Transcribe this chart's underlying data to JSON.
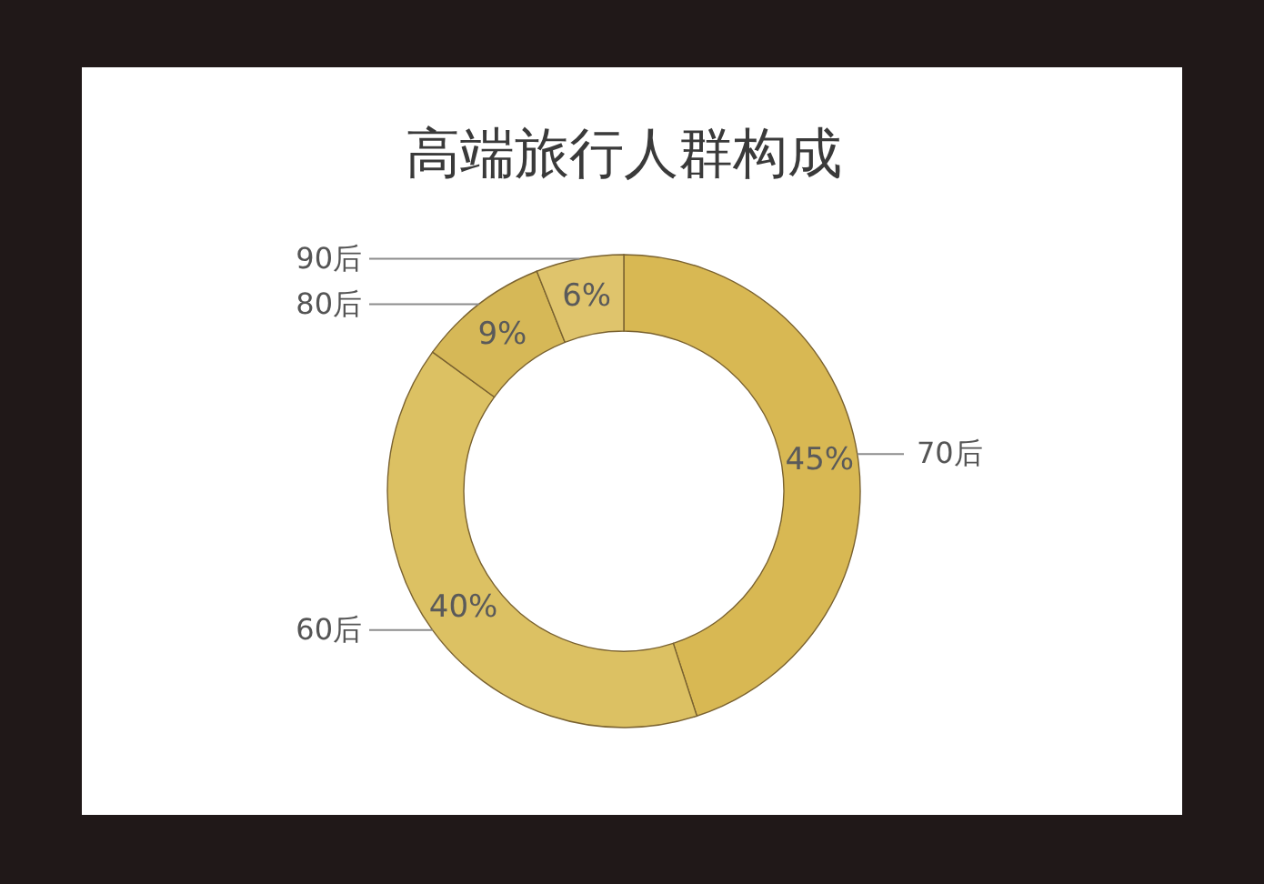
{
  "chart_data": {
    "type": "donut",
    "title": "高端旅行人群构成",
    "categories": [
      "70后",
      "60后",
      "80后",
      "90后"
    ],
    "values": [
      45,
      40,
      9,
      6
    ],
    "colors": [
      "#d8b853",
      "#dcc163",
      "#d6b857",
      "#dfc46c"
    ],
    "value_labels": [
      "45%",
      "40%",
      "9%",
      "6%"
    ]
  }
}
